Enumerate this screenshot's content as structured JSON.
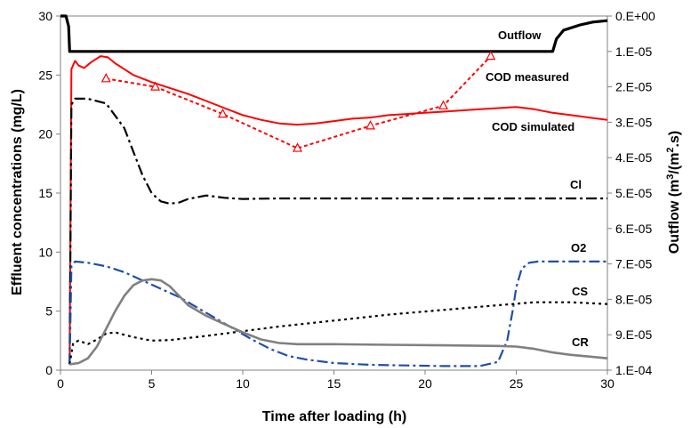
{
  "chart_data": {
    "type": "line",
    "xlabel": "Time after loading (h)",
    "ylabel": "Effluent concentrations (mg/L)",
    "y2label_parts": [
      "Outflow (m",
      "3",
      "/(m",
      "2",
      ".s)"
    ],
    "xlim": [
      0,
      30
    ],
    "ylim": [
      0,
      30
    ],
    "y2lim": [
      0,
      0.0001
    ],
    "y2_inverted": true,
    "x_ticks": [
      "0",
      "5",
      "10",
      "15",
      "20",
      "25",
      "30"
    ],
    "y_ticks": [
      "0",
      "5",
      "10",
      "15",
      "20",
      "25",
      "30"
    ],
    "y2_ticks": [
      "0.E+00",
      "1.E-05",
      "2.E-05",
      "3.E-05",
      "4.E-05",
      "5.E-05",
      "6.E-05",
      "7.E-05",
      "8.E-05",
      "9.E-05",
      "1.E-04"
    ],
    "grid": false,
    "legend": "inline labels",
    "colors": {
      "outflow": "#000000",
      "cod": "#ff0000",
      "cl": "#000000",
      "o2": "#1f4fa8",
      "cs": "#000000",
      "cr": "#808080"
    },
    "series": [
      {
        "name": "Outflow",
        "axis": "right",
        "x": [
          0,
          0.3,
          0.45,
          0.5,
          27.0,
          27.2,
          27.6,
          28.5,
          29.2,
          30
        ],
        "y": [
          0,
          0,
          3e-06,
          1e-05,
          1e-05,
          6.5e-06,
          4e-06,
          2.5e-06,
          1.7e-06,
          1.3e-06
        ]
      },
      {
        "name": "COD measured",
        "x": [
          2.5,
          5.2,
          8.9,
          13.0,
          17.0,
          21.0,
          23.6
        ],
        "y": [
          24.7,
          24.0,
          21.7,
          18.8,
          20.7,
          22.4,
          26.6
        ]
      },
      {
        "name": "COD simulated",
        "x": [
          0.5,
          0.6,
          0.8,
          1.0,
          1.3,
          1.7,
          2.2,
          2.6,
          3.0,
          4.0,
          5.0,
          6.0,
          7.0,
          8.0,
          9.0,
          10.0,
          11.0,
          12.0,
          13.0,
          14.0,
          15.0,
          16.0,
          17.0,
          18.0,
          19.0,
          20.0,
          21.0,
          22.0,
          23.0,
          24.0,
          25.0,
          26.0,
          27.0,
          28.0,
          29.0,
          30.0
        ],
        "y": [
          0.5,
          25.5,
          26.2,
          25.8,
          25.6,
          26.1,
          26.6,
          26.5,
          26.0,
          25.0,
          24.4,
          23.9,
          23.4,
          22.8,
          22.2,
          21.6,
          21.2,
          20.9,
          20.8,
          20.9,
          21.1,
          21.3,
          21.4,
          21.6,
          21.7,
          21.8,
          21.9,
          22.0,
          22.1,
          22.2,
          22.3,
          22.1,
          21.8,
          21.6,
          21.4,
          21.2
        ]
      },
      {
        "name": "Cl",
        "x": [
          0.5,
          0.6,
          0.8,
          1.5,
          2.5,
          3.5,
          4.0,
          4.5,
          5.0,
          5.5,
          6.0,
          6.5,
          7.0,
          8.0,
          9.0,
          10.0,
          12.0,
          15.0,
          20.0,
          25.0,
          30.0
        ],
        "y": [
          0.5,
          22.5,
          23.0,
          23.0,
          22.6,
          20.5,
          18.5,
          16.5,
          15.0,
          14.3,
          14.1,
          14.2,
          14.5,
          14.8,
          14.6,
          14.5,
          14.55,
          14.55,
          14.55,
          14.55,
          14.55
        ]
      },
      {
        "name": "O2",
        "x": [
          0.5,
          0.6,
          0.8,
          1.5,
          2.5,
          3.5,
          4.5,
          5.5,
          6.5,
          7.5,
          8.5,
          9.5,
          10.5,
          11.5,
          12.5,
          13.5,
          15.0,
          17.0,
          19.0,
          21.0,
          23.0,
          24.0,
          24.5,
          24.8,
          25.0,
          25.3,
          25.7,
          26.2,
          27.0,
          28.0,
          30.0
        ],
        "y": [
          0.5,
          8.8,
          9.2,
          9.1,
          8.8,
          8.3,
          7.6,
          6.9,
          6.2,
          5.3,
          4.4,
          3.5,
          2.6,
          1.8,
          1.2,
          0.9,
          0.6,
          0.45,
          0.4,
          0.35,
          0.35,
          0.7,
          2.5,
          5.0,
          7.0,
          8.6,
          9.1,
          9.2,
          9.2,
          9.2,
          9.2
        ]
      },
      {
        "name": "CS",
        "x": [
          0.5,
          0.7,
          1.0,
          1.5,
          2.0,
          2.5,
          3.0,
          4.0,
          5.0,
          6.0,
          8.0,
          10.0,
          12.0,
          15.0,
          18.0,
          21.0,
          24.0,
          26.0,
          28.0,
          30.0
        ],
        "y": [
          0.5,
          2.3,
          2.5,
          2.2,
          2.6,
          3.1,
          3.2,
          2.8,
          2.5,
          2.55,
          2.9,
          3.3,
          3.7,
          4.2,
          4.7,
          5.1,
          5.5,
          5.75,
          5.75,
          5.6
        ]
      },
      {
        "name": "CR",
        "x": [
          0.5,
          1.0,
          1.5,
          2.0,
          2.5,
          3.0,
          3.5,
          4.0,
          4.5,
          5.0,
          5.5,
          6.0,
          6.5,
          7.0,
          8.0,
          9.0,
          10.0,
          11.0,
          12.0,
          13.0,
          15.0,
          18.0,
          21.0,
          24.0,
          25.0,
          26.0,
          27.0,
          28.0,
          29.0,
          30.0
        ],
        "y": [
          0.5,
          0.6,
          1.0,
          2.0,
          3.5,
          5.0,
          6.3,
          7.2,
          7.6,
          7.7,
          7.6,
          7.1,
          6.3,
          5.5,
          4.6,
          3.9,
          3.2,
          2.6,
          2.3,
          2.2,
          2.2,
          2.15,
          2.1,
          2.05,
          2.0,
          1.8,
          1.5,
          1.3,
          1.15,
          1.0
        ]
      }
    ],
    "annotations": [
      "Outflow",
      "COD measured",
      "COD simulated",
      "Cl",
      "O2",
      "CS",
      "CR"
    ]
  }
}
